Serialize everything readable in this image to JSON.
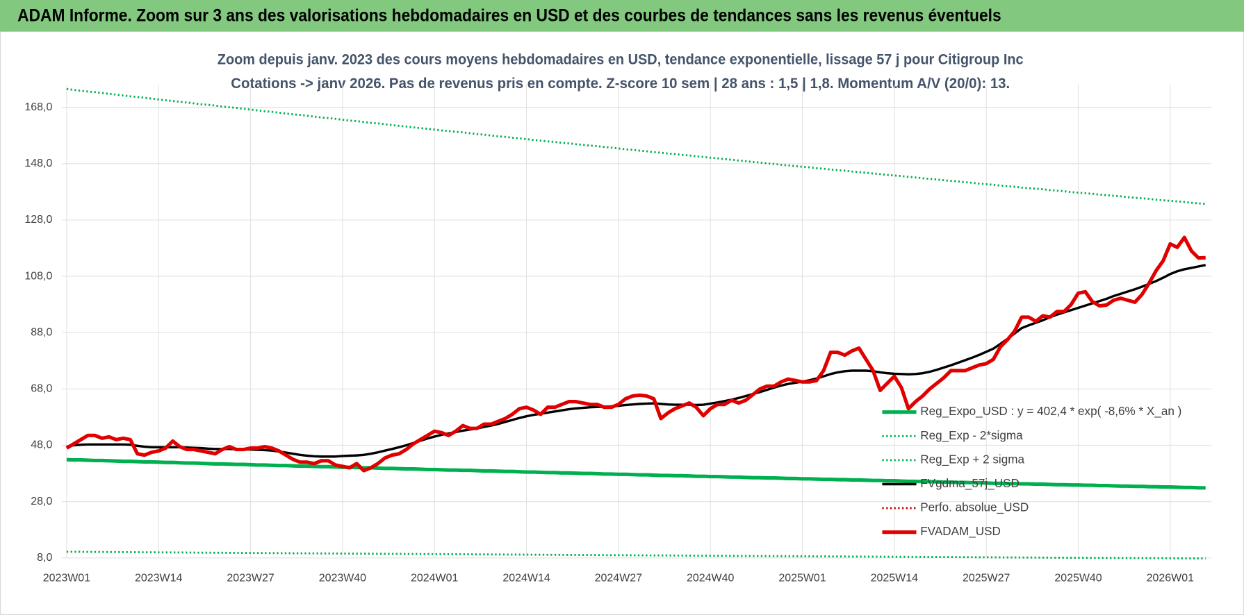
{
  "banner": "ADAM Informe. Zoom sur 3 ans des valorisations hebdomadaires en USD et des courbes de tendances sans les revenus éventuels",
  "chart_data": {
    "type": "line",
    "title": "Zoom depuis janv. 2023 des cours moyens hebdomadaires en USD, tendance exponentielle, lissage 57 j pour Citigroup Inc",
    "subtitle": "Cotations -> janv 2026. Pas de revenus pris en compte. Z-score 10 sem | 28 ans : 1,5 | 1,8. Momentum A/V (20/0): 13.",
    "categories": [
      "2023W01",
      null,
      null,
      null,
      null,
      null,
      null,
      null,
      null,
      null,
      null,
      null,
      null,
      "2023W14",
      null,
      null,
      null,
      null,
      null,
      null,
      null,
      null,
      null,
      null,
      null,
      null,
      "2023W27",
      null,
      null,
      null,
      null,
      null,
      null,
      null,
      null,
      null,
      null,
      null,
      null,
      "2023W40",
      null,
      null,
      null,
      null,
      null,
      null,
      null,
      null,
      null,
      null,
      null,
      null,
      "2024W01",
      null,
      null,
      null,
      null,
      null,
      null,
      null,
      null,
      null,
      null,
      null,
      null,
      "2024W14",
      null,
      null,
      null,
      null,
      null,
      null,
      null,
      null,
      null,
      null,
      null,
      null,
      "2024W27",
      null,
      null,
      null,
      null,
      null,
      null,
      null,
      null,
      null,
      null,
      null,
      null,
      "2024W40",
      null,
      null,
      null,
      null,
      null,
      null,
      null,
      null,
      null,
      null,
      null,
      null,
      "2025W01",
      null,
      null,
      null,
      null,
      null,
      null,
      null,
      null,
      null,
      null,
      null,
      null,
      "2025W14",
      null,
      null,
      null,
      null,
      null,
      null,
      null,
      null,
      null,
      null,
      null,
      null,
      "2025W27",
      null,
      null,
      null,
      null,
      null,
      null,
      null,
      null,
      null,
      null,
      null,
      null,
      "2025W40",
      null,
      null,
      null,
      null,
      null,
      null,
      null,
      null,
      null,
      null,
      null,
      null,
      "2026W01",
      null,
      null,
      null,
      null,
      null
    ],
    "ylim": [
      8,
      176
    ],
    "yticks": [
      {
        "value": 8,
        "label": "8,0"
      },
      {
        "value": 28,
        "label": "28,0"
      },
      {
        "value": 48,
        "label": "48,0"
      },
      {
        "value": 68,
        "label": "68,0"
      },
      {
        "value": 88,
        "label": "88,0"
      },
      {
        "value": 108,
        "label": "108,0"
      },
      {
        "value": 128,
        "label": "128,0"
      },
      {
        "value": 148,
        "label": "148,0"
      },
      {
        "value": 168,
        "label": "168,0"
      }
    ],
    "grid": true,
    "legend": "lower right",
    "series": [
      {
        "name": "Reg_Expo_USD : y = 402,4 * exp( -8,6% *  X_an )",
        "color": "#00b050",
        "style": "thick",
        "values": [
          42.9,
          42.8,
          42.8,
          42.7,
          42.6,
          42.6,
          42.5,
          42.4,
          42.3,
          42.3,
          42.2,
          42.1,
          42.1,
          42.0,
          41.9,
          41.9,
          41.8,
          41.7,
          41.7,
          41.6,
          41.5,
          41.4,
          41.4,
          41.3,
          41.2,
          41.2,
          41.1,
          41.0,
          41.0,
          40.9,
          40.8,
          40.8,
          40.7,
          40.6,
          40.6,
          40.5,
          40.4,
          40.4,
          40.3,
          40.2,
          40.2,
          40.1,
          40.0,
          40.0,
          39.9,
          39.8,
          39.8,
          39.7,
          39.6,
          39.6,
          39.5,
          39.4,
          39.4,
          39.3,
          39.2,
          39.2,
          39.1,
          39.1,
          39.0,
          38.9,
          38.9,
          38.8,
          38.7,
          38.7,
          38.6,
          38.5,
          38.5,
          38.4,
          38.3,
          38.3,
          38.2,
          38.2,
          38.1,
          38.0,
          38.0,
          37.9,
          37.8,
          37.8,
          37.7,
          37.7,
          37.6,
          37.5,
          37.5,
          37.4,
          37.3,
          37.3,
          37.2,
          37.2,
          37.1,
          37.0,
          37.0,
          36.9,
          36.9,
          36.8,
          36.7,
          36.7,
          36.6,
          36.5,
          36.5,
          36.4,
          36.4,
          36.3,
          36.2,
          36.2,
          36.1,
          36.1,
          36.0,
          35.9,
          35.9,
          35.8,
          35.8,
          35.7,
          35.7,
          35.6,
          35.5,
          35.5,
          35.4,
          35.4,
          35.3,
          35.2,
          35.2,
          35.1,
          35.1,
          35.0,
          34.9,
          34.9,
          34.8,
          34.8,
          34.7,
          34.7,
          34.6,
          34.5,
          34.5,
          34.4,
          34.4,
          34.3,
          34.3,
          34.2,
          34.2,
          34.1,
          34.0,
          34.0,
          33.9,
          33.9,
          33.8,
          33.8,
          33.7,
          33.7,
          33.6,
          33.5,
          33.5,
          33.4,
          33.4,
          33.3,
          33.3,
          33.2,
          33.2,
          33.1,
          33.0,
          33.0,
          32.9,
          32.9
        ]
      },
      {
        "name": "Reg_Exp - 2*sigma",
        "color": "#00b050",
        "style": "dotted",
        "values": [
          10.2,
          10.18,
          10.17,
          10.15,
          10.13,
          10.12,
          10.1,
          10.08,
          10.06,
          10.05,
          10.03,
          10.01,
          10.0,
          9.98,
          9.96,
          9.95,
          9.93,
          9.92,
          9.9,
          9.88,
          9.87,
          9.85,
          9.84,
          9.82,
          9.8,
          9.79,
          9.77,
          9.75,
          9.74,
          9.72,
          9.71,
          9.69,
          9.67,
          9.66,
          9.64,
          9.63,
          9.61,
          9.59,
          9.58,
          9.56,
          9.55,
          9.53,
          9.52,
          9.5,
          9.49,
          9.47,
          9.46,
          9.44,
          9.43,
          9.41,
          9.4,
          9.38,
          9.36,
          9.35,
          9.33,
          9.32,
          9.3,
          9.29,
          9.27,
          9.26,
          9.24,
          9.23,
          9.21,
          9.2,
          9.18,
          9.16,
          9.15,
          9.13,
          9.12,
          9.1,
          9.09,
          9.07,
          9.06,
          9.04,
          9.03,
          9.01,
          9.0,
          8.98,
          8.97,
          8.96,
          8.94,
          8.93,
          8.91,
          8.9,
          8.88,
          8.87,
          8.85,
          8.84,
          8.82,
          8.81,
          8.79,
          8.78,
          8.77,
          8.75,
          8.74,
          8.72,
          8.71,
          8.69,
          8.68,
          8.66,
          8.65,
          8.63,
          8.62,
          8.6,
          8.59,
          8.58,
          8.56,
          8.55,
          8.53,
          8.52,
          8.51,
          8.49,
          8.48,
          8.46,
          8.45,
          8.44,
          8.42,
          8.41,
          8.4,
          8.38,
          8.37,
          8.35,
          8.34,
          8.33,
          8.31,
          8.3,
          8.28,
          8.27,
          8.26,
          8.24,
          8.23,
          8.22,
          8.2,
          8.19,
          8.17,
          8.16,
          8.15,
          8.13,
          8.12,
          8.1,
          8.09,
          8.08,
          8.06,
          8.05,
          8.04,
          8.02,
          8.01,
          8.0,
          7.99,
          7.97,
          7.96,
          7.95,
          7.94,
          7.92,
          7.91,
          7.9,
          7.88,
          7.87,
          7.86,
          7.84,
          7.83,
          7.82
        ]
      },
      {
        "name": "Reg_Exp + 2 sigma",
        "color": "#00b050",
        "style": "dotted",
        "values": [
          174.5,
          174.2,
          173.9,
          173.6,
          173.4,
          173.1,
          172.8,
          172.5,
          172.2,
          171.9,
          171.7,
          171.4,
          171.1,
          170.8,
          170.5,
          170.2,
          170.0,
          169.7,
          169.4,
          169.1,
          168.9,
          168.6,
          168.3,
          168.0,
          167.8,
          167.5,
          167.2,
          166.9,
          166.6,
          166.4,
          166.1,
          165.8,
          165.5,
          165.3,
          165.0,
          164.7,
          164.4,
          164.2,
          163.9,
          163.6,
          163.3,
          163.1,
          162.8,
          162.5,
          162.3,
          162.0,
          161.7,
          161.4,
          161.2,
          160.9,
          160.6,
          160.4,
          160.1,
          159.8,
          159.6,
          159.3,
          159.1,
          158.8,
          158.5,
          158.3,
          158.0,
          157.7,
          157.5,
          157.2,
          157.0,
          156.7,
          156.4,
          156.2,
          155.9,
          155.7,
          155.4,
          155.2,
          154.9,
          154.7,
          154.4,
          154.2,
          153.9,
          153.7,
          153.4,
          153.1,
          152.9,
          152.6,
          152.4,
          152.1,
          151.9,
          151.6,
          151.4,
          151.1,
          150.9,
          150.6,
          150.4,
          150.1,
          149.9,
          149.6,
          149.4,
          149.1,
          148.9,
          148.6,
          148.4,
          148.1,
          147.9,
          147.6,
          147.4,
          147.1,
          146.9,
          146.7,
          146.4,
          146.2,
          145.9,
          145.7,
          145.5,
          145.2,
          145.0,
          144.8,
          144.5,
          144.3,
          144.0,
          143.8,
          143.6,
          143.3,
          143.1,
          142.8,
          142.6,
          142.4,
          142.1,
          141.9,
          141.7,
          141.4,
          141.2,
          140.9,
          140.7,
          140.5,
          140.2,
          140.0,
          139.8,
          139.5,
          139.3,
          139.1,
          138.9,
          138.6,
          138.4,
          138.2,
          137.9,
          137.7,
          137.5,
          137.3,
          137.0,
          136.8,
          136.6,
          136.4,
          136.1,
          135.9,
          135.7,
          135.5,
          135.2,
          135.0,
          134.8,
          134.6,
          134.4,
          134.1,
          133.9,
          133.7
        ]
      },
      {
        "name": "FVgdma_57j_USD",
        "color": "#000000",
        "style": "solid",
        "values": [
          47.5,
          48.0,
          48.2,
          48.3,
          48.3,
          48.3,
          48.3,
          48.3,
          48.3,
          48.2,
          47.8,
          47.5,
          47.3,
          47.3,
          47.3,
          47.3,
          47.3,
          47.2,
          47.1,
          47.0,
          46.8,
          46.7,
          46.7,
          46.7,
          46.6,
          46.5,
          46.5,
          46.4,
          46.3,
          46.1,
          45.8,
          45.4,
          45.0,
          44.6,
          44.3,
          44.1,
          44.0,
          44.0,
          44.0,
          44.2,
          44.3,
          44.4,
          44.6,
          45.0,
          45.5,
          46.1,
          46.7,
          47.3,
          48.0,
          48.8,
          49.6,
          50.4,
          51.1,
          51.7,
          52.2,
          52.7,
          53.2,
          53.6,
          54.0,
          54.5,
          55.0,
          55.6,
          56.3,
          57.0,
          57.7,
          58.3,
          58.8,
          59.2,
          59.6,
          60.0,
          60.4,
          60.8,
          61.1,
          61.3,
          61.5,
          61.6,
          61.7,
          61.8,
          62.0,
          62.3,
          62.5,
          62.7,
          62.8,
          62.9,
          62.7,
          62.5,
          62.4,
          62.4,
          62.4,
          62.3,
          62.4,
          62.8,
          63.2,
          63.7,
          64.2,
          64.8,
          65.5,
          66.2,
          66.9,
          67.7,
          68.5,
          69.2,
          69.8,
          70.2,
          70.6,
          71.1,
          71.7,
          72.5,
          73.3,
          73.9,
          74.3,
          74.5,
          74.5,
          74.5,
          74.3,
          73.9,
          73.6,
          73.4,
          73.3,
          73.2,
          73.3,
          73.6,
          74.1,
          74.8,
          75.6,
          76.4,
          77.3,
          78.2,
          79.1,
          80.1,
          81.2,
          82.3,
          84.0,
          85.8,
          87.7,
          89.6,
          90.6,
          91.5,
          92.4,
          93.5,
          94.4,
          95.2,
          96.0,
          96.8,
          97.6,
          98.4,
          99.2,
          100.0,
          101.0,
          101.8,
          102.6,
          103.4,
          104.3,
          105.3,
          106.3,
          107.5,
          108.8,
          109.8,
          110.5,
          111.0,
          111.5,
          112.0
        ]
      },
      {
        "name": "Perfo. absolue_USD",
        "color": "#c00000",
        "style": "dotted",
        "values": [
          null,
          null,
          null,
          null,
          null,
          null,
          null,
          null,
          null,
          null,
          null,
          null,
          null,
          null,
          null,
          null,
          null,
          null,
          null,
          null,
          null,
          null,
          null,
          null,
          null,
          null,
          null,
          null,
          null,
          null,
          null,
          null,
          null,
          null,
          null,
          null,
          null,
          null,
          null,
          null,
          null,
          null,
          null,
          null,
          null,
          null,
          null,
          null,
          null,
          null,
          null,
          null,
          null,
          null,
          null,
          null,
          null,
          null,
          null,
          null,
          null,
          null,
          null,
          null,
          null,
          null,
          null,
          null,
          null,
          null,
          null,
          null,
          null,
          null,
          null,
          null,
          null,
          null,
          null,
          null,
          null,
          null,
          null,
          null,
          null,
          null,
          null,
          null,
          null,
          null,
          null,
          null,
          null,
          null,
          null,
          null,
          null,
          null,
          null,
          null,
          null,
          null,
          null,
          null,
          null,
          null,
          null,
          null,
          null,
          null,
          null,
          null,
          null,
          null,
          null,
          null,
          null,
          null,
          null,
          null,
          null,
          null,
          null,
          null,
          null,
          null,
          null,
          null,
          null,
          null,
          null,
          null,
          null,
          null,
          null,
          null,
          null,
          null,
          null,
          null,
          null,
          null,
          null,
          null,
          null,
          null,
          null,
          null,
          null,
          null,
          null,
          null,
          null,
          null,
          null,
          null,
          null,
          null,
          null,
          null,
          null,
          null
        ]
      },
      {
        "name": "FVADAM_USD",
        "color": "#e00000",
        "style": "thick",
        "values": [
          47.0,
          48.5,
          50.0,
          51.5,
          51.5,
          50.5,
          51.0,
          50.0,
          50.5,
          50.0,
          45.0,
          44.5,
          45.5,
          46.0,
          47.0,
          49.5,
          47.5,
          46.5,
          46.5,
          46.0,
          45.5,
          45.0,
          46.5,
          47.5,
          46.5,
          46.5,
          47.0,
          47.0,
          47.5,
          47.0,
          46.0,
          44.5,
          43.0,
          42.0,
          42.0,
          41.5,
          42.5,
          42.5,
          41.0,
          40.5,
          40.0,
          41.5,
          39.0,
          40.0,
          41.5,
          43.5,
          44.5,
          45.0,
          46.5,
          48.5,
          50.0,
          51.5,
          53.0,
          52.5,
          51.5,
          53.0,
          55.0,
          54.0,
          54.0,
          55.5,
          55.5,
          56.5,
          57.5,
          59.0,
          61.0,
          61.5,
          60.5,
          59.0,
          61.5,
          61.5,
          62.5,
          63.5,
          63.5,
          63.0,
          62.5,
          62.5,
          61.5,
          61.5,
          62.5,
          64.5,
          65.5,
          65.8,
          65.5,
          64.5,
          57.5,
          59.5,
          61.0,
          62.0,
          63.0,
          61.5,
          58.5,
          61.0,
          62.5,
          62.5,
          64.0,
          63.0,
          64.0,
          66.0,
          68.0,
          69.0,
          69.0,
          70.5,
          71.5,
          71.0,
          70.5,
          70.5,
          71.0,
          74.5,
          81.0,
          81.0,
          80.0,
          81.5,
          82.5,
          78.5,
          74.5,
          67.5,
          70.0,
          72.5,
          68.5,
          61.0,
          63.5,
          65.5,
          68.0,
          70.0,
          72.0,
          74.5,
          74.5,
          74.5,
          75.5,
          76.5,
          77.0,
          78.5,
          83.0,
          85.5,
          88.5,
          93.5,
          93.5,
          92.0,
          94.0,
          93.5,
          95.5,
          95.5,
          98.0,
          102.0,
          102.5,
          99.0,
          97.5,
          97.8,
          99.5,
          100.2,
          99.5,
          98.8,
          101.5,
          105.5,
          110.0,
          113.5,
          119.5,
          118.3,
          121.8,
          117.0,
          114.5,
          114.6
        ]
      }
    ]
  }
}
